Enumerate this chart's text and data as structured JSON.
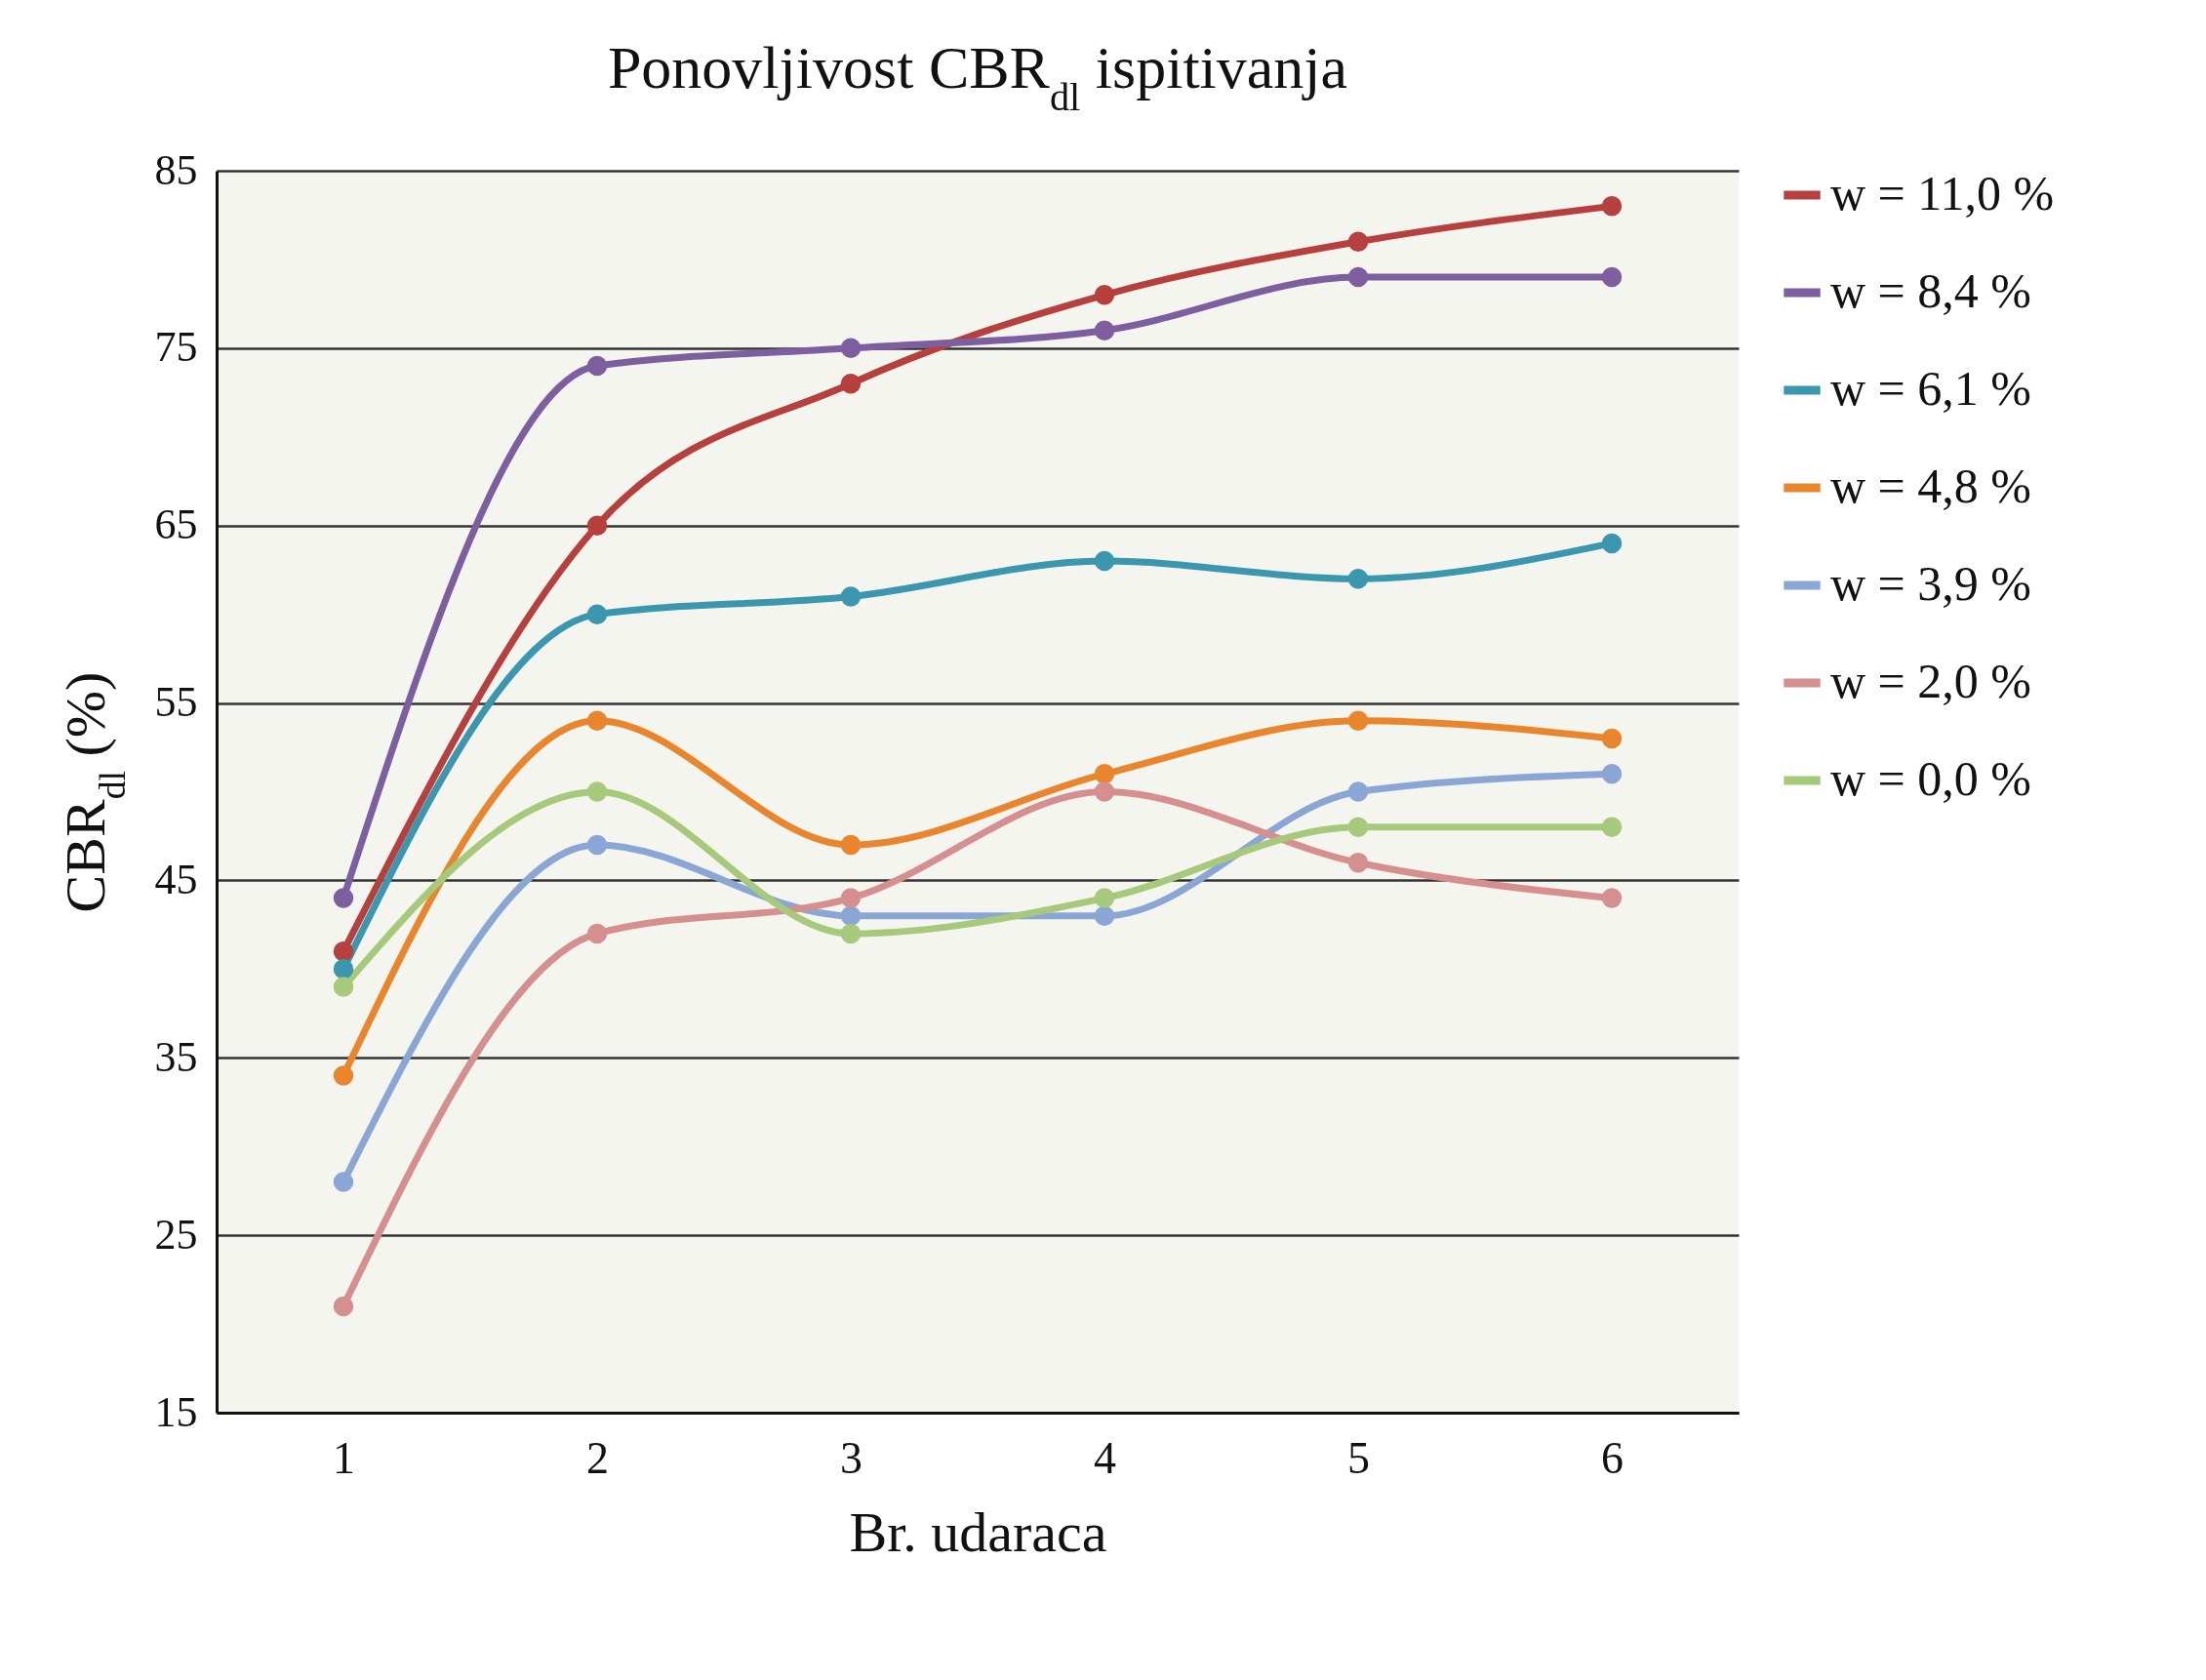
{
  "chart_data": {
    "type": "line",
    "title": "Ponovljivost CBR$_{dl}$ ispitivanja",
    "xlabel": "Br. udaraca",
    "ylabel": "CBR$_{dl}$   (%)",
    "categories": [
      "1",
      "2",
      "3",
      "4",
      "5",
      "6"
    ],
    "ylim": [
      15,
      85
    ],
    "yticks": [
      15,
      25,
      35,
      45,
      55,
      65,
      75,
      85
    ],
    "grid": "y",
    "legend": "right",
    "marker": "circle",
    "line_style": "solid",
    "series": [
      {
        "name": "w = 11,0 %",
        "color": "#b5403d",
        "values": [
          41,
          65,
          73,
          78,
          81,
          83
        ]
      },
      {
        "name": "w = 8,4 %",
        "color": "#7d5fa0",
        "values": [
          44,
          74,
          75,
          76,
          79,
          79
        ]
      },
      {
        "name": "w = 6,1 %",
        "color": "#3a97ad",
        "values": [
          40,
          60,
          61,
          63,
          62,
          64
        ]
      },
      {
        "name": "w = 4,8 %",
        "color": "#e8852d",
        "values": [
          34,
          54,
          47,
          51,
          54,
          53
        ]
      },
      {
        "name": "w = 3,9 %",
        "color": "#8aa6d5",
        "values": [
          28,
          47,
          43,
          43,
          50,
          51
        ]
      },
      {
        "name": "w = 2,0 %",
        "color": "#d68f8f",
        "values": [
          21,
          42,
          44,
          50,
          46,
          44
        ]
      },
      {
        "name": "w = 0,0 %",
        "color": "#a7c97b",
        "values": [
          39,
          50,
          42,
          44,
          48,
          48
        ]
      }
    ]
  }
}
